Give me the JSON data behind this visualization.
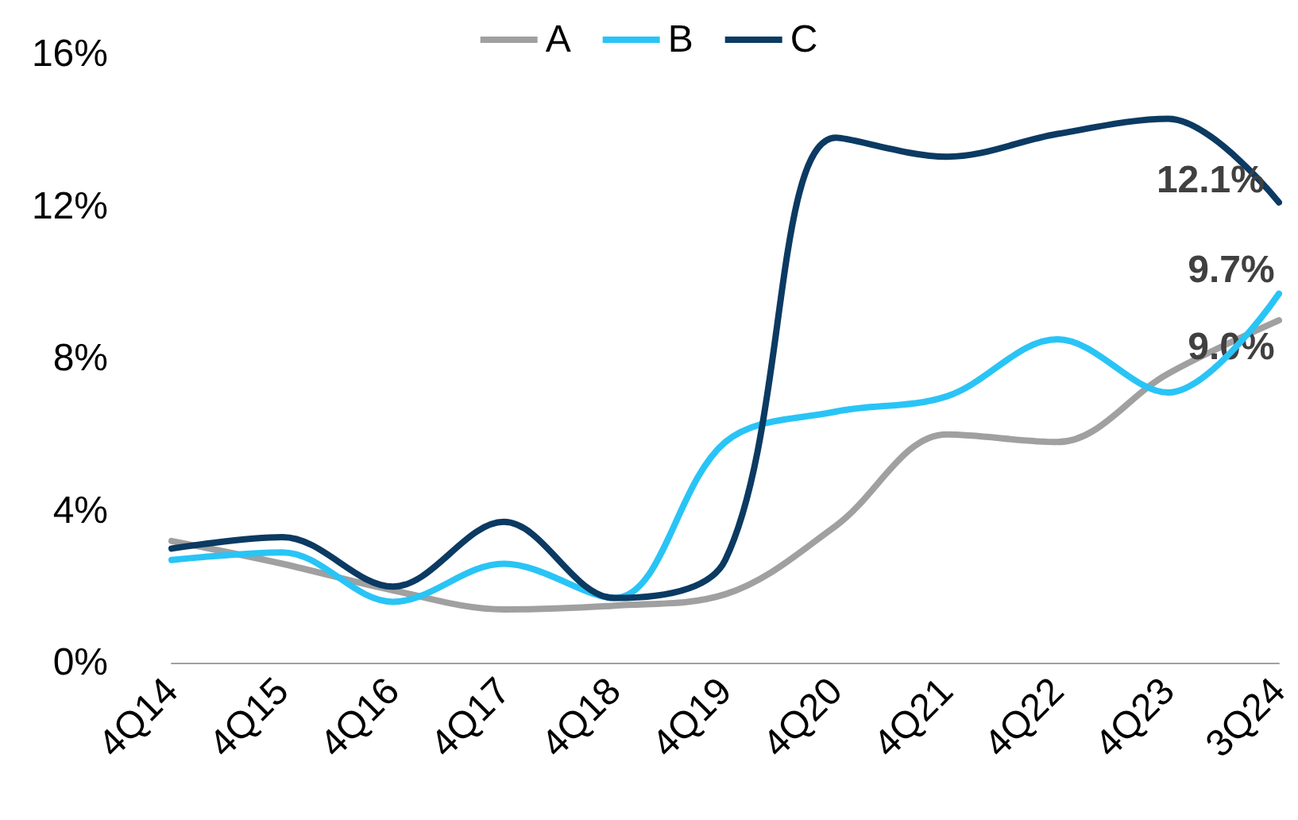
{
  "chart_data": {
    "type": "line",
    "categories": [
      "4Q14",
      "4Q15",
      "4Q16",
      "4Q17",
      "4Q18",
      "4Q19",
      "4Q20",
      "4Q21",
      "4Q22",
      "4Q23",
      "3Q24"
    ],
    "series": [
      {
        "name": "A",
        "color": "#a0a0a0",
        "values": [
          3.2,
          2.6,
          1.9,
          1.4,
          1.5,
          1.8,
          3.6,
          6.0,
          5.8,
          7.6,
          9.0
        ],
        "value_labels": [
          null,
          null,
          null,
          null,
          null,
          null,
          null,
          null,
          null,
          null,
          "9.0%"
        ]
      },
      {
        "name": "B",
        "color": "#29c4f6",
        "values": [
          2.7,
          2.9,
          1.6,
          2.6,
          1.7,
          5.8,
          6.6,
          7.0,
          8.5,
          7.1,
          9.7
        ],
        "value_labels": [
          null,
          null,
          null,
          null,
          null,
          null,
          null,
          null,
          null,
          null,
          "9.7%"
        ]
      },
      {
        "name": "C",
        "color": "#0b3a62",
        "values": [
          3.0,
          3.3,
          2.0,
          3.7,
          1.7,
          2.7,
          13.8,
          13.3,
          13.9,
          14.3,
          12.1
        ],
        "value_labels": [
          null,
          null,
          null,
          null,
          null,
          null,
          null,
          null,
          null,
          null,
          "12.1%"
        ]
      }
    ],
    "ylim": [
      0,
      16
    ],
    "yticks": [
      {
        "value": 0,
        "label": "0%"
      },
      {
        "value": 4,
        "label": "4%"
      },
      {
        "value": 8,
        "label": "8%"
      },
      {
        "value": 12,
        "label": "12%"
      },
      {
        "value": 16,
        "label": "16%"
      }
    ],
    "grid": false,
    "legend": "top",
    "marker": "none",
    "line_style": "solid"
  }
}
